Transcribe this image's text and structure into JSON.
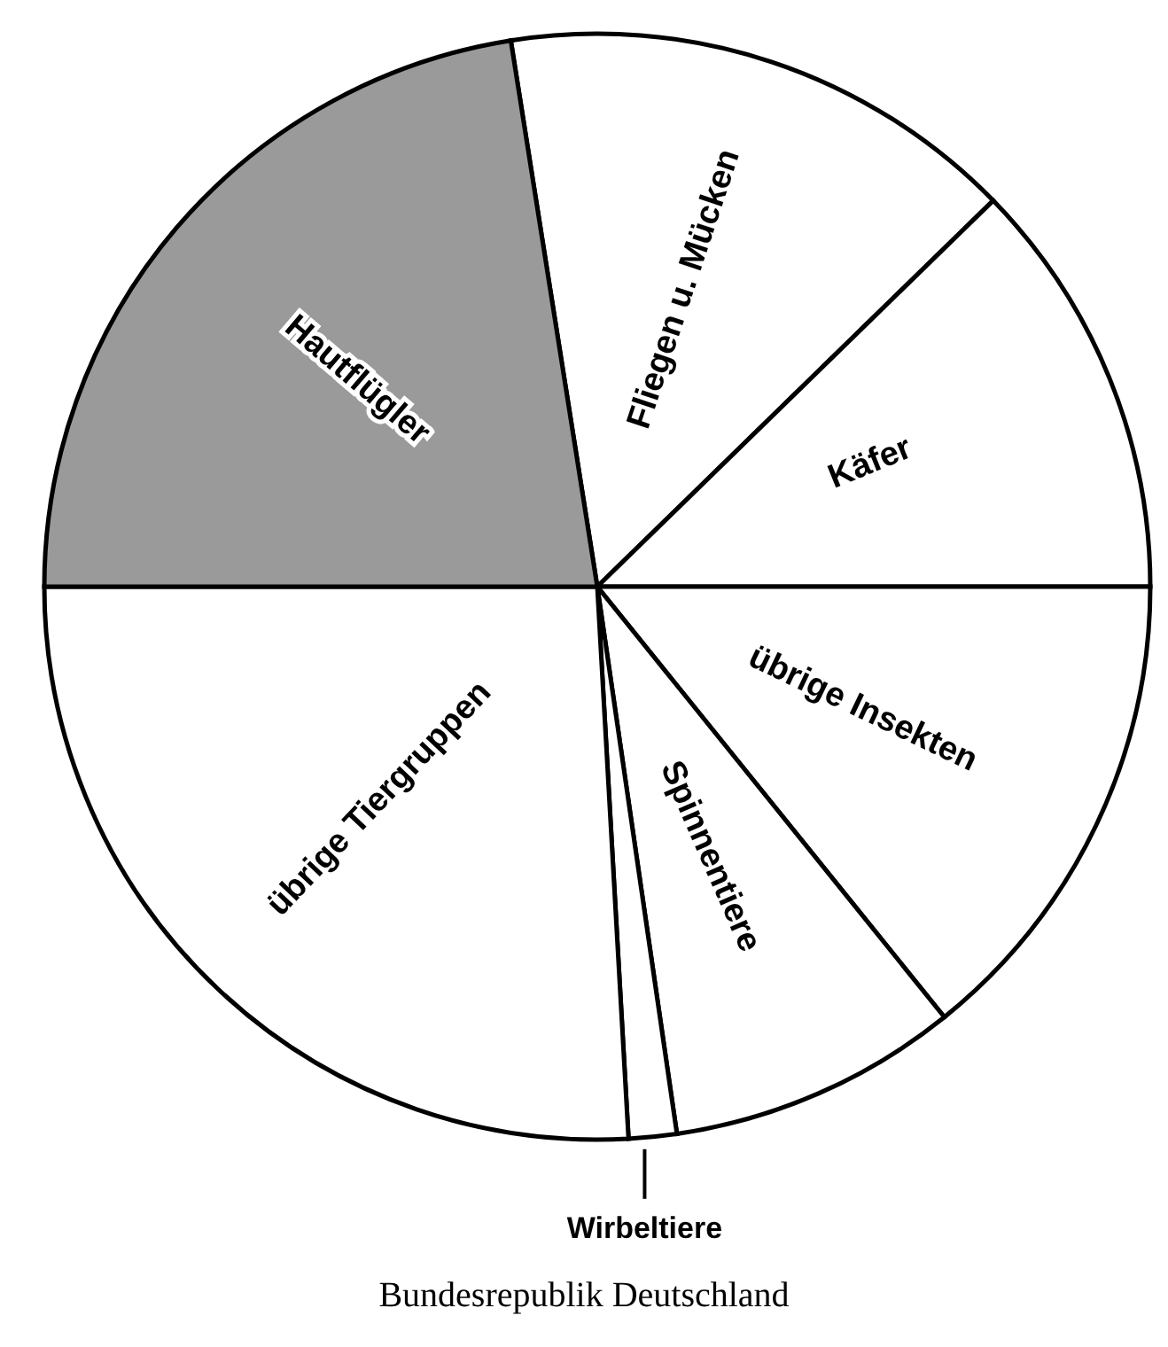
{
  "chart_data": {
    "type": "pie",
    "title": "Bundesrepublik Deutschland",
    "categories": [
      "Fliegen u. Mücken",
      "Käfer",
      "übrige Insekten",
      "Spinnentiere",
      "Wirbeltiere",
      "übrige Tiergruppen",
      "Hautflügler"
    ],
    "values": [
      15.2,
      12.3,
      14.2,
      8.5,
      1.4,
      25.9,
      22.5
    ],
    "colors": [
      "#ffffff",
      "#ffffff",
      "#ffffff",
      "#ffffff",
      "#ffffff",
      "#ffffff",
      "#9a9a9a"
    ]
  }
}
